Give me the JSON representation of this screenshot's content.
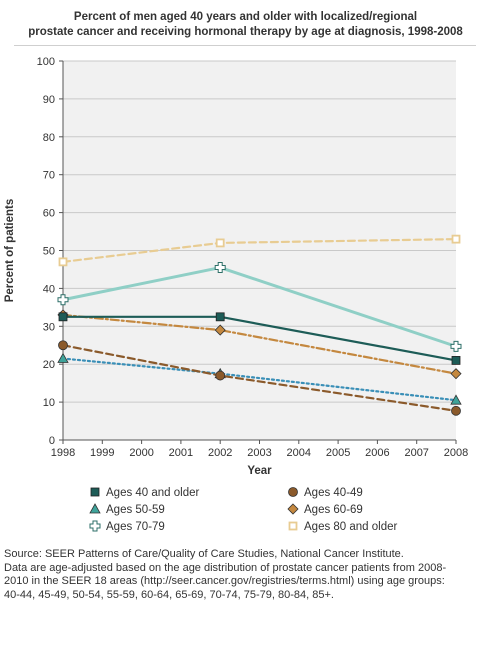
{
  "title_lines": [
    "Percent of men aged 40 years and older with localized/regional",
    "prostate cancer and receiving hormonal therapy by age at diagnosis, 1998-2008"
  ],
  "source_lines": [
    "Source: SEER Patterns of Care/Quality of Care Studies, National Cancer Institute.",
    "Data are age-adjusted based on the age distribution of prostate cancer patients from 2008-",
    "2010 in the SEER 18 areas (http://seer.cancer.gov/registries/terms.html) using age groups:",
    "40-44, 45-49, 50-54, 55-59, 60-64, 65-69, 70-74, 75-79, 80-84, 85+."
  ],
  "chart_data": {
    "type": "line",
    "title": "Percent of men aged 40 years and older with localized/regional prostate cancer and receiving hormonal therapy by age at diagnosis, 1998-2008",
    "xlabel": "Year",
    "ylabel": "Percent of patients",
    "xlim": [
      1998,
      2008
    ],
    "ylim": [
      0,
      100
    ],
    "x_ticks": [
      1998,
      1999,
      2000,
      2001,
      2002,
      2003,
      2004,
      2005,
      2006,
      2007,
      2008
    ],
    "y_ticks": [
      0,
      10,
      20,
      30,
      40,
      50,
      60,
      70,
      80,
      90,
      100
    ],
    "grid": "horizontal",
    "legend_position": "bottom",
    "series": [
      {
        "name": "Ages 40 and older",
        "x": [
          1998,
          2002,
          2008
        ],
        "values": [
          32.5,
          32.5,
          21
        ],
        "color": "#1d5c57",
        "dash": "solid",
        "marker": "square"
      },
      {
        "name": "Ages 40-49",
        "x": [
          1998,
          2002,
          2008
        ],
        "values": [
          25,
          17,
          7.7
        ],
        "color": "#8b5a2b",
        "dash": "dashed",
        "marker": "circle"
      },
      {
        "name": "Ages 50-59",
        "x": [
          1998,
          2002,
          2008
        ],
        "values": [
          21.5,
          17.5,
          10.5
        ],
        "color": "#3a8fb7",
        "dash": "dotted",
        "marker": "triangle"
      },
      {
        "name": "Ages 60-69",
        "x": [
          1998,
          2002,
          2008
        ],
        "values": [
          33,
          29,
          17.5
        ],
        "color": "#c4883f",
        "dash": "dashdot",
        "marker": "diamond"
      },
      {
        "name": "Ages 70-79",
        "x": [
          1998,
          2002,
          2008
        ],
        "values": [
          37,
          45.5,
          24.7
        ],
        "color": "#8fcfc6",
        "dash": "solid",
        "marker": "plus"
      },
      {
        "name": "Ages 80 and older",
        "x": [
          1998,
          2002,
          2008
        ],
        "values": [
          47,
          52,
          53
        ],
        "color": "#e8cc92",
        "dash": "dashed",
        "marker": "square-open"
      }
    ]
  }
}
